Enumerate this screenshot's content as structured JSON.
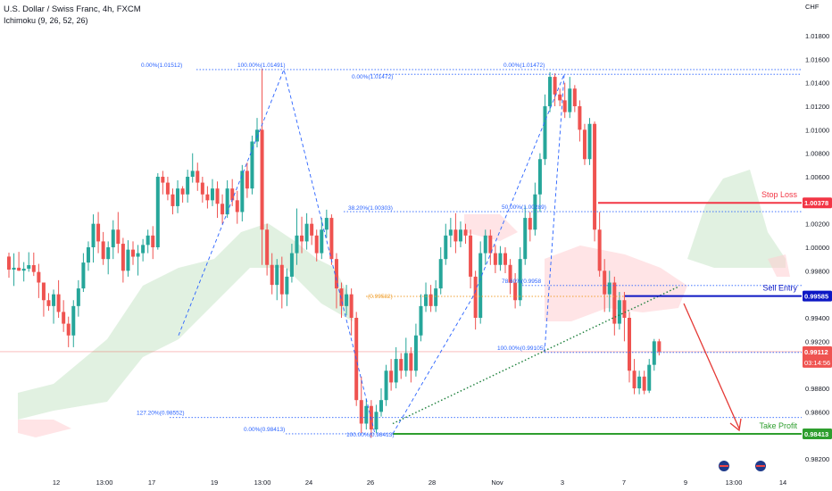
{
  "header": {
    "title": "U.S. Dollar / Swiss Franc, 4h, FXCM",
    "indicator": "Ichimoku (9, 26, 52, 26)"
  },
  "colors": {
    "up": "#26a69a",
    "down": "#ef5350",
    "fib": "#2962ff",
    "fib_orange": "#f0a030",
    "stop_loss": "#f23645",
    "sell_entry": "#0c17c4",
    "take_profit": "#2e9e2e",
    "cloud_green": "#c8e6c9",
    "cloud_red": "#ffcdd2",
    "trendline": "#1b7f3a",
    "arrow": "#e53935",
    "price_line": "#ef5350"
  },
  "levels": {
    "stop_loss": {
      "label": "Stop Loss",
      "value": "1.00378",
      "price": 1.00378
    },
    "sell_entry": {
      "label": "Sell Entry",
      "value": "0.99585",
      "price": 0.99585
    },
    "take_profit": {
      "label": "Take Profit",
      "value": "0.98413",
      "price": 0.98413
    },
    "current": {
      "value": "0.99112",
      "countdown": "03:14:56",
      "price": 0.99112
    }
  },
  "fib_labels": [
    {
      "text": "0.00%(1.01512)",
      "price": 1.01512
    },
    {
      "text": "100.00%(1.01491)",
      "price": 1.01512
    },
    {
      "text": "0.00%(1.01472)",
      "price": 1.01472
    },
    {
      "text": "0.00%(1.01472)",
      "price": 1.01512
    },
    {
      "text": "38.20%(1.00303)",
      "price": 1.00303
    },
    {
      "text": "50.00%(1.00289)",
      "price": 1.00303
    },
    {
      "text": "(0.99582)",
      "price": 0.99582
    },
    {
      "text": "78.60%(0.9958",
      "price": 0.99675
    },
    {
      "text": "100.00%(0.99105)",
      "price": 0.99105
    },
    {
      "text": "127.20%(0.98552)",
      "price": 0.98552
    },
    {
      "text": "0.00%(0.98413)",
      "price": 0.98413
    },
    {
      "text": "100.00%(0.98413)",
      "price": 0.98413
    }
  ],
  "chart_data": {
    "type": "candlestick",
    "symbol": "USDCHF",
    "currency": "CHF",
    "y_ticks": [
      "1.01800",
      "1.01600",
      "1.01400",
      "1.01200",
      "1.01000",
      "1.00800",
      "1.00600",
      "1.00400",
      "1.00200",
      "1.00000",
      "0.99800",
      "0.99600",
      "0.99400",
      "0.99200",
      "0.99000",
      "0.98800",
      "0.98600",
      "0.98400",
      "0.98200"
    ],
    "ylim": [
      0.9808,
      1.0198
    ],
    "x_ticks": [
      "12",
      "13:00",
      "17",
      "19",
      "13:00",
      "24",
      "26",
      "28",
      "Nov",
      "3",
      "7",
      "9",
      "13:00",
      "14"
    ],
    "candles": [
      [
        1,
        0.99921,
        0.9981,
        0.99741,
        0.99954
      ],
      [
        2,
        0.9981,
        0.99826,
        0.99671,
        0.99949
      ],
      [
        3,
        0.99826,
        0.99801,
        0.99798,
        0.99961
      ],
      [
        4,
        0.99801,
        0.99818,
        0.99709,
        0.99874
      ],
      [
        5,
        0.99818,
        0.99848,
        0.99792,
        0.99958
      ],
      [
        6,
        0.99848,
        0.9979,
        0.99756,
        0.99955
      ],
      [
        7,
        0.9979,
        0.997,
        0.99568,
        0.99859
      ],
      [
        8,
        0.997,
        0.9955,
        0.9941,
        0.997
      ],
      [
        9,
        0.9955,
        0.995,
        0.9946,
        0.9961
      ],
      [
        10,
        0.995,
        0.996,
        0.9935,
        0.9964
      ],
      [
        11,
        0.996,
        0.9945,
        0.994,
        0.9972
      ],
      [
        12,
        0.9945,
        0.9935,
        0.9928,
        0.9955
      ],
      [
        13,
        0.9935,
        0.9925,
        0.9915,
        0.9941
      ],
      [
        14,
        0.9925,
        0.995,
        0.9915,
        0.9955
      ],
      [
        15,
        0.995,
        0.9965,
        0.9941,
        0.9972
      ],
      [
        16,
        0.9965,
        0.9987,
        0.9962,
        0.9995
      ],
      [
        17,
        0.9987,
        1.0,
        0.998,
        1.0005
      ],
      [
        18,
        1.0,
        1.002,
        0.9987,
        1.0028
      ],
      [
        19,
        1.002,
        1.0005,
        0.9995,
        1.003
      ],
      [
        20,
        1.0005,
        0.999,
        0.9985,
        1.0013
      ],
      [
        21,
        0.999,
        1.0,
        0.9977,
        1.0005
      ],
      [
        22,
        1.0,
        1.0015,
        0.999,
        1.0023
      ],
      [
        23,
        1.0015,
        1.0003,
        0.9995,
        1.003
      ],
      [
        24,
        1.0003,
        0.998,
        0.997,
        1.0008
      ],
      [
        25,
        0.998,
        0.9998,
        0.9975,
        1.0006
      ],
      [
        26,
        0.9998,
        0.9992,
        0.9985,
        1.0005
      ],
      [
        27,
        0.9992,
        0.9995,
        0.9976,
        1.0002
      ],
      [
        28,
        0.9995,
        1.0002,
        0.9988,
        1.0007
      ],
      [
        29,
        1.0002,
        1.001,
        0.9995,
        1.0015
      ],
      [
        30,
        1.001,
        1.0,
        0.999,
        1.0018
      ],
      [
        31,
        1.0,
        1.006,
        0.9998,
        1.0063
      ],
      [
        32,
        1.006,
        1.0055,
        1.0045,
        1.0065
      ],
      [
        33,
        1.0055,
        1.0045,
        1.004,
        1.006
      ],
      [
        34,
        1.0045,
        1.0035,
        1.0028,
        1.005
      ],
      [
        35,
        1.0035,
        1.005,
        1.0029,
        1.0057
      ],
      [
        36,
        1.005,
        1.0045,
        1.0038,
        1.0052
      ],
      [
        37,
        1.0045,
        1.006,
        1.0038,
        1.0066
      ],
      [
        38,
        1.006,
        1.0065,
        1.0055,
        1.008
      ],
      [
        39,
        1.0065,
        1.0055,
        1.0048,
        1.0072
      ],
      [
        40,
        1.0055,
        1.0045,
        1.0038,
        1.006
      ],
      [
        41,
        1.0045,
        1.004,
        1.0033,
        1.0052
      ],
      [
        42,
        1.004,
        1.005,
        1.0035,
        1.0058
      ],
      [
        43,
        1.005,
        1.0037,
        1.0025,
        1.0056
      ],
      [
        44,
        1.0037,
        1.0028,
        1.002,
        1.0045
      ],
      [
        45,
        1.0028,
        1.005,
        1.0025,
        1.0057
      ],
      [
        46,
        1.005,
        1.004,
        1.0035,
        1.0058
      ],
      [
        47,
        1.004,
        1.003,
        1.002,
        1.0048
      ],
      [
        48,
        1.003,
        1.0065,
        1.0022,
        1.007
      ],
      [
        49,
        1.0065,
        1.005,
        1.0042,
        1.0072
      ],
      [
        50,
        1.005,
        1.009,
        1.0045,
        1.0095
      ],
      [
        51,
        1.009,
        1.01,
        1.0085,
        1.011
      ],
      [
        52,
        1.01,
        1.0015,
        0.9985,
        1.0152
      ],
      [
        53,
        1.0015,
        0.9985,
        0.9976,
        1.002
      ],
      [
        54,
        0.9985,
        0.9968,
        0.996,
        0.9995
      ],
      [
        55,
        0.9968,
        0.9985,
        0.9955,
        0.999
      ],
      [
        56,
        0.9985,
        0.996,
        0.9948,
        0.9992
      ],
      [
        57,
        0.996,
        0.9975,
        0.995,
        0.9982
      ],
      [
        58,
        0.9975,
        0.9995,
        0.997,
        1.0003
      ],
      [
        59,
        0.9995,
        1.001,
        0.9985,
        1.0033
      ],
      [
        60,
        1.001,
        1.0005,
        0.9995,
        1.0026
      ],
      [
        61,
        1.0005,
        1.002,
        0.9998,
        1.0029
      ],
      [
        62,
        1.002,
        1.001,
        1.0002,
        1.0025
      ],
      [
        63,
        1.001,
        0.9995,
        0.9988,
        1.0015
      ],
      [
        64,
        0.9995,
        1.0015,
        0.999,
        1.0025
      ],
      [
        65,
        1.0015,
        1.0025,
        1.0008,
        1.0032
      ],
      [
        66,
        1.0025,
        0.999,
        0.9985,
        1.0028
      ],
      [
        67,
        0.999,
        0.9965,
        0.9948,
        0.9995
      ],
      [
        68,
        0.9965,
        0.995,
        0.994,
        0.997
      ],
      [
        69,
        0.995,
        0.996,
        0.9942,
        0.9968
      ],
      [
        70,
        0.996,
        0.994,
        0.9925,
        0.9965
      ],
      [
        71,
        0.994,
        0.987,
        0.9865,
        0.9945
      ],
      [
        72,
        0.987,
        0.985,
        0.9842,
        0.989
      ],
      [
        73,
        0.985,
        0.9865,
        0.9845,
        0.9871
      ],
      [
        74,
        0.9865,
        0.9845,
        0.9838,
        0.987
      ],
      [
        75,
        0.9845,
        0.986,
        0.9842,
        0.9866
      ],
      [
        76,
        0.986,
        0.987,
        0.9856,
        0.988
      ],
      [
        77,
        0.987,
        0.9895,
        0.9865,
        0.99
      ],
      [
        78,
        0.9895,
        0.9885,
        0.9878,
        0.9905
      ],
      [
        79,
        0.9885,
        0.9905,
        0.988,
        0.9915
      ],
      [
        80,
        0.9905,
        0.9895,
        0.9888,
        0.991
      ],
      [
        81,
        0.9895,
        0.991,
        0.989,
        0.9923
      ],
      [
        82,
        0.991,
        0.9895,
        0.9885,
        0.9915
      ],
      [
        83,
        0.9895,
        0.9925,
        0.989,
        0.9935
      ],
      [
        84,
        0.9925,
        0.995,
        0.992,
        0.996
      ],
      [
        85,
        0.995,
        0.996,
        0.9945,
        0.997
      ],
      [
        86,
        0.996,
        0.995,
        0.9945,
        0.9968
      ],
      [
        87,
        0.995,
        0.9965,
        0.9945,
        0.9972
      ],
      [
        88,
        0.9965,
        0.999,
        0.996,
        1.0
      ],
      [
        89,
        0.999,
        1.001,
        0.9985,
        1.002
      ],
      [
        90,
        1.001,
        1.0015,
        1.0,
        1.0025
      ],
      [
        91,
        1.0015,
        1.0005,
        0.9995,
        1.0029
      ],
      [
        92,
        1.0005,
        1.0015,
        1.0,
        1.0022
      ],
      [
        93,
        1.0015,
        1.001,
        1.0003,
        1.002
      ],
      [
        94,
        1.001,
        0.9975,
        0.9965,
        1.0015
      ],
      [
        95,
        0.9975,
        0.994,
        0.993,
        0.998
      ],
      [
        96,
        0.994,
        0.9995,
        0.9935,
        1.0005
      ],
      [
        97,
        0.9995,
        1.001,
        0.9985,
        1.0015
      ],
      [
        98,
        1.001,
        0.9995,
        0.9985,
        1.0015
      ],
      [
        99,
        0.9995,
        0.9985,
        0.9978,
        1.0002
      ],
      [
        100,
        0.9985,
        0.9995,
        0.998,
        1.0001
      ],
      [
        101,
        0.9995,
        0.9985,
        0.9978,
        1.0
      ],
      [
        102,
        0.9985,
        0.997,
        0.996,
        0.999
      ],
      [
        103,
        0.997,
        0.9955,
        0.9948,
        0.9978
      ],
      [
        104,
        0.9955,
        0.999,
        0.995,
        1.0
      ],
      [
        105,
        0.999,
        1.0025,
        0.9985,
        1.0035
      ],
      [
        106,
        1.0025,
        1.0015,
        1.0005,
        1.003
      ],
      [
        107,
        1.0015,
        1.0045,
        1.001,
        1.0055
      ],
      [
        108,
        1.0045,
        1.0075,
        1.003,
        1.008
      ],
      [
        109,
        1.0075,
        1.012,
        1.007,
        1.013
      ],
      [
        110,
        1.012,
        1.0145,
        1.0115,
        1.0149
      ],
      [
        111,
        1.0145,
        1.013,
        1.012,
        1.0148
      ],
      [
        112,
        1.013,
        1.0125,
        1.012,
        1.0135
      ],
      [
        113,
        1.0125,
        1.0115,
        1.011,
        1.014
      ],
      [
        114,
        1.0115,
        1.0135,
        1.011,
        1.0145
      ],
      [
        115,
        1.0135,
        1.012,
        1.0115,
        1.0138
      ],
      [
        116,
        1.012,
        1.01,
        1.009,
        1.0125
      ],
      [
        117,
        1.01,
        1.0075,
        1.007,
        1.0105
      ],
      [
        118,
        1.0075,
        1.0105,
        1.007,
        1.011
      ],
      [
        119,
        1.0105,
        1.0015,
        1.0005,
        1.0107
      ],
      [
        120,
        1.0015,
        0.998,
        0.9975,
        1.003
      ],
      [
        121,
        0.998,
        0.996,
        0.9945,
        0.999
      ],
      [
        122,
        0.996,
        0.997,
        0.9945,
        0.998
      ],
      [
        123,
        0.997,
        0.9935,
        0.9925,
        0.9975
      ],
      [
        124,
        0.9935,
        0.9955,
        0.993,
        0.9962
      ],
      [
        125,
        0.9955,
        0.994,
        0.992,
        0.9962
      ],
      [
        126,
        0.994,
        0.9895,
        0.9885,
        0.9945
      ],
      [
        127,
        0.9895,
        0.988,
        0.9875,
        0.9905
      ],
      [
        128,
        0.988,
        0.989,
        0.9875,
        0.9895
      ],
      [
        129,
        0.989,
        0.9878,
        0.9875,
        0.9895
      ],
      [
        130,
        0.9878,
        0.99,
        0.9876,
        0.9905
      ],
      [
        131,
        0.99,
        0.992,
        0.9895,
        0.9922
      ],
      [
        132,
        0.992,
        0.99112,
        0.9908,
        0.9922
      ]
    ]
  }
}
